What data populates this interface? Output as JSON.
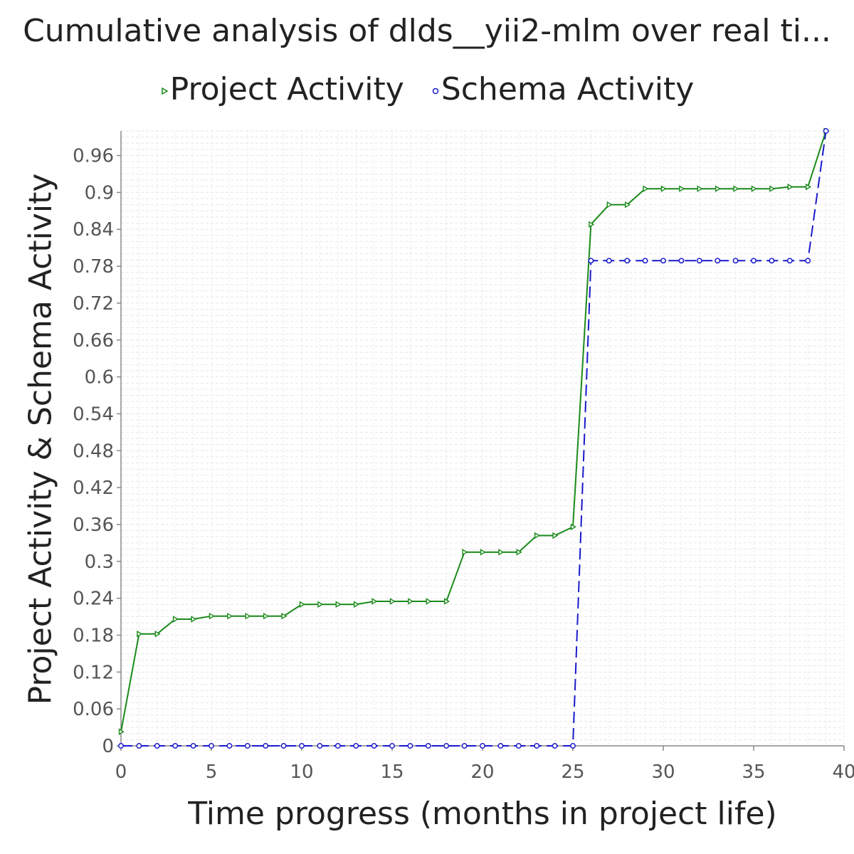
{
  "chart_data": {
    "type": "line",
    "title": "Cumulative analysis of dlds__yii2-mlm over real ti...",
    "xlabel": "Time progress (months in project life)",
    "ylabel": "Project Activity & Schema Activity",
    "xlim": [
      0,
      40
    ],
    "ylim": [
      0,
      1.0
    ],
    "xticks": [
      "0",
      "5",
      "10",
      "15",
      "20",
      "25",
      "30",
      "35",
      "40"
    ],
    "yticks": [
      "0",
      "0.06",
      "0.12",
      "0.18",
      "0.24",
      "0.3",
      "0.36",
      "0.42",
      "0.48",
      "0.54",
      "0.6",
      "0.66",
      "0.72",
      "0.78",
      "0.84",
      "0.9",
      "0.96"
    ],
    "legend_position": "top",
    "grid": true,
    "series": [
      {
        "name": "Project Activity",
        "color": "#1a8a1a",
        "line_style": "solid",
        "marker": "triangle-right",
        "x": [
          0,
          1,
          2,
          3,
          4,
          5,
          6,
          7,
          8,
          9,
          10,
          11,
          12,
          13,
          14,
          15,
          16,
          17,
          18,
          19,
          20,
          21,
          22,
          23,
          24,
          25,
          26,
          27,
          28,
          29,
          30,
          31,
          32,
          33,
          34,
          35,
          36,
          37,
          38,
          39
        ],
        "y": [
          0.023,
          0.182,
          0.182,
          0.206,
          0.206,
          0.211,
          0.211,
          0.211,
          0.211,
          0.211,
          0.23,
          0.23,
          0.23,
          0.23,
          0.235,
          0.235,
          0.235,
          0.235,
          0.235,
          0.315,
          0.315,
          0.315,
          0.315,
          0.342,
          0.342,
          0.356,
          0.848,
          0.88,
          0.88,
          0.906,
          0.906,
          0.906,
          0.906,
          0.906,
          0.906,
          0.906,
          0.906,
          0.909,
          0.909,
          1.0
        ]
      },
      {
        "name": "Schema Activity",
        "color": "#1a1acc",
        "line_style": "dashed",
        "marker": "circle",
        "x": [
          0,
          1,
          2,
          3,
          4,
          5,
          6,
          7,
          8,
          9,
          10,
          11,
          12,
          13,
          14,
          15,
          16,
          17,
          18,
          19,
          20,
          21,
          22,
          23,
          24,
          25,
          26,
          27,
          28,
          29,
          30,
          31,
          32,
          33,
          34,
          35,
          36,
          37,
          38,
          39
        ],
        "y": [
          0,
          0,
          0,
          0,
          0,
          0,
          0,
          0,
          0,
          0,
          0,
          0,
          0,
          0,
          0,
          0,
          0,
          0,
          0,
          0,
          0,
          0,
          0,
          0,
          0,
          0,
          0.789,
          0.789,
          0.789,
          0.789,
          0.789,
          0.789,
          0.789,
          0.789,
          0.789,
          0.789,
          0.789,
          0.789,
          0.789,
          1.0
        ]
      }
    ]
  }
}
